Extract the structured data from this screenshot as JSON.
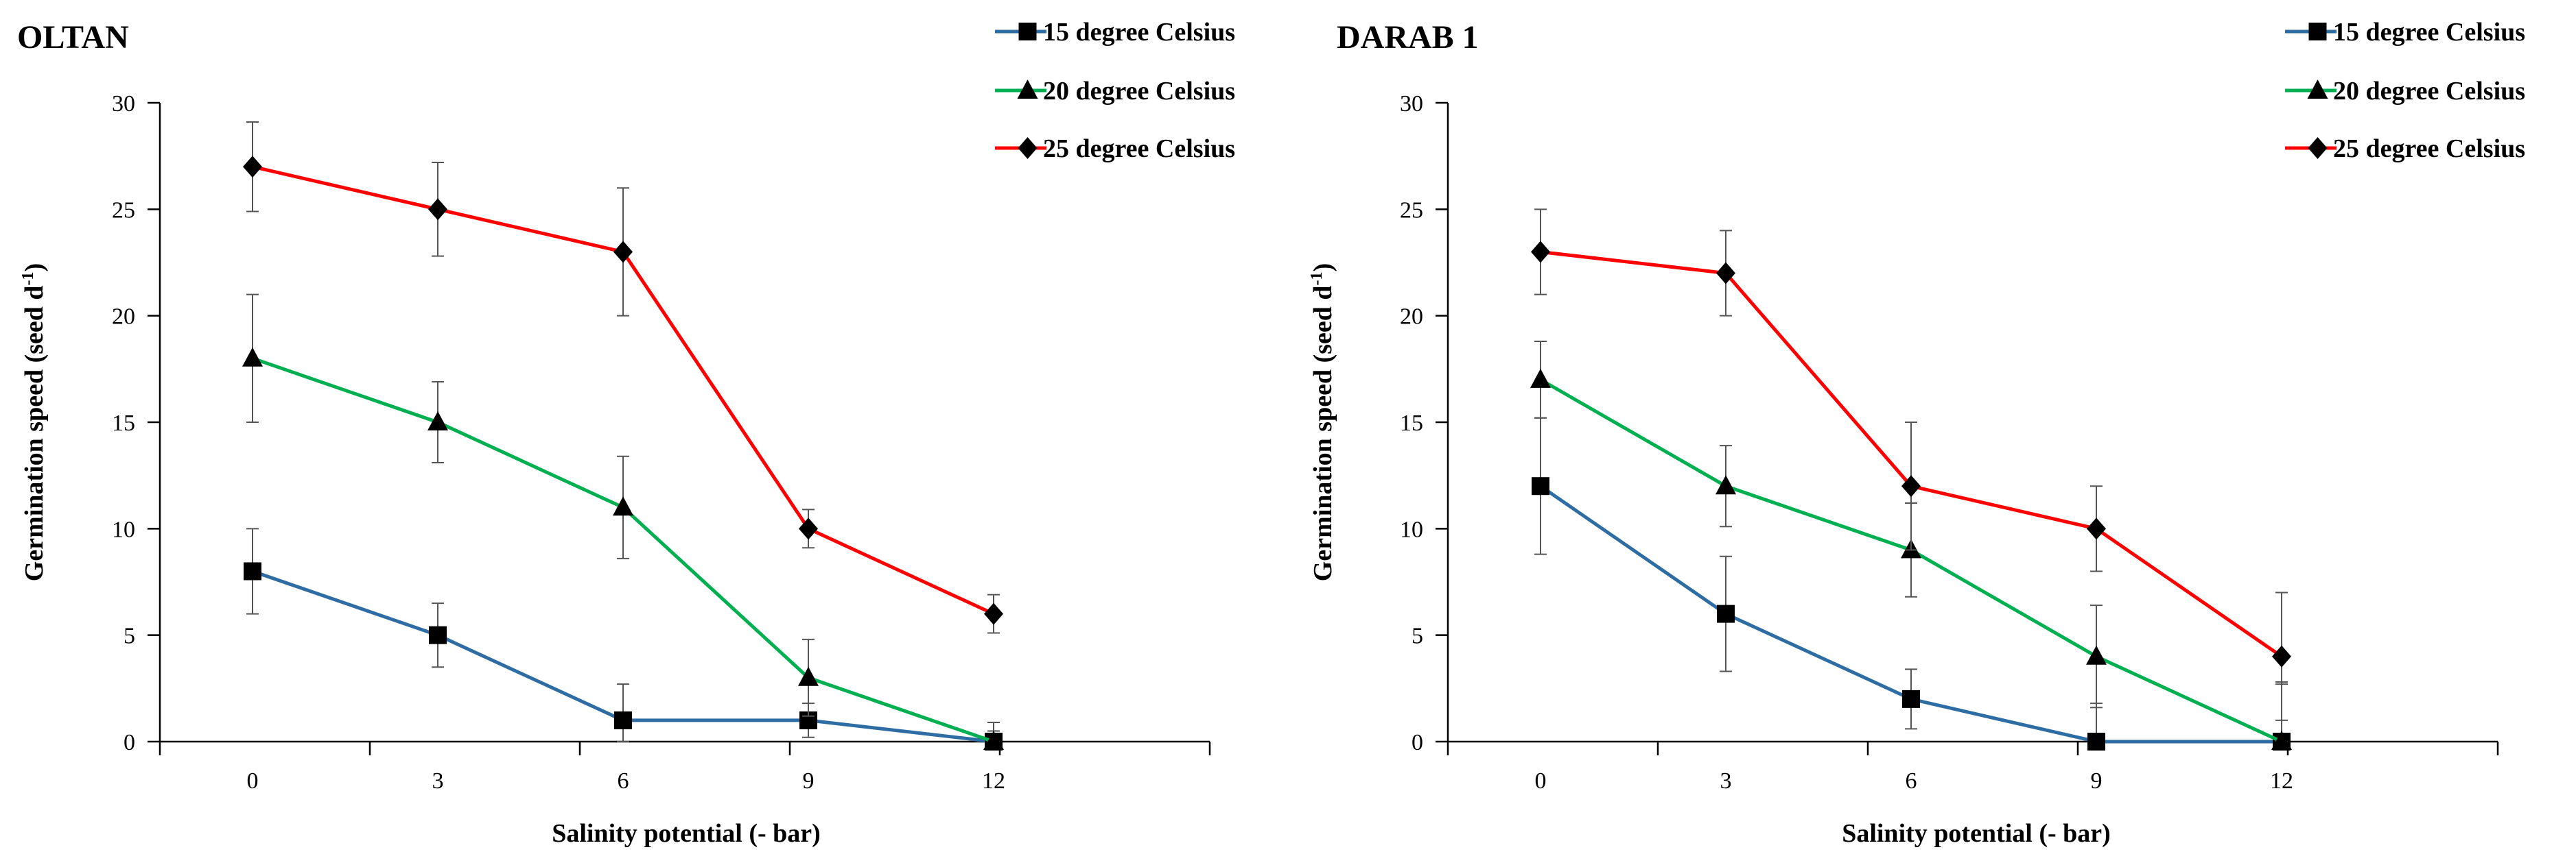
{
  "chart_data": [
    {
      "type": "line",
      "title": "OLTAN",
      "xlabel": "Salinity potential  (- bar)",
      "ylabel_main": "Germination speed (seed d",
      "ylabel_sup": "-1",
      "ylabel_close": ")",
      "xlim": [
        -1.5,
        15.5
      ],
      "ylim": [
        0,
        30
      ],
      "x": [
        0,
        3,
        6,
        9,
        12
      ],
      "xticks": [
        "0",
        "3",
        "6",
        "9",
        "12"
      ],
      "yticks": [
        "0",
        "5",
        "10",
        "15",
        "20",
        "25",
        "30"
      ],
      "legend_position": "top-right",
      "series": [
        {
          "name": "15 degree Celsius",
          "color": "#2e6da4",
          "marker": "square",
          "values": [
            8,
            5,
            1,
            1,
            0
          ],
          "errors": [
            2,
            1.5,
            1.7,
            0.8,
            0.9
          ]
        },
        {
          "name": "20 degree Celsius",
          "color": "#00b050",
          "marker": "triangle",
          "values": [
            18,
            15,
            11,
            3,
            0
          ],
          "errors": [
            3,
            1.9,
            2.4,
            1.8,
            0.5
          ]
        },
        {
          "name": "25 degree Celsius",
          "color": "#ff0000",
          "marker": "diamond",
          "values": [
            27,
            25,
            23,
            10,
            6
          ],
          "errors": [
            2.1,
            2.2,
            3,
            0.9,
            0.9
          ]
        }
      ]
    },
    {
      "type": "line",
      "title": "DARAB 1",
      "xlabel": "Salinity potential  (- bar)",
      "ylabel_main": "Germination  speed (seed d",
      "ylabel_sup": "-1",
      "ylabel_close": ")",
      "xlim": [
        -1.5,
        15.5
      ],
      "ylim": [
        0,
        30
      ],
      "x": [
        0,
        3,
        6,
        9,
        12
      ],
      "xticks": [
        "0",
        "3",
        "6",
        "9",
        "12"
      ],
      "yticks": [
        "0",
        "5",
        "10",
        "15",
        "20",
        "25",
        "30"
      ],
      "legend_position": "top-right",
      "series": [
        {
          "name": "15 degree Celsius",
          "color": "#2e6da4",
          "marker": "square",
          "values": [
            12,
            6,
            2,
            0,
            0
          ],
          "errors": [
            3.2,
            2.7,
            1.4,
            1.8,
            2.8
          ]
        },
        {
          "name": "20 degree Celsius",
          "color": "#00b050",
          "marker": "triangle",
          "values": [
            17,
            12,
            9,
            4,
            0
          ],
          "errors": [
            1.8,
            1.9,
            2.2,
            2.4,
            2.7
          ]
        },
        {
          "name": "25 degree Celsius",
          "color": "#ff0000",
          "marker": "diamond",
          "values": [
            23,
            22,
            12,
            10,
            4
          ],
          "errors": [
            2,
            2,
            3,
            2,
            3
          ]
        }
      ]
    }
  ]
}
